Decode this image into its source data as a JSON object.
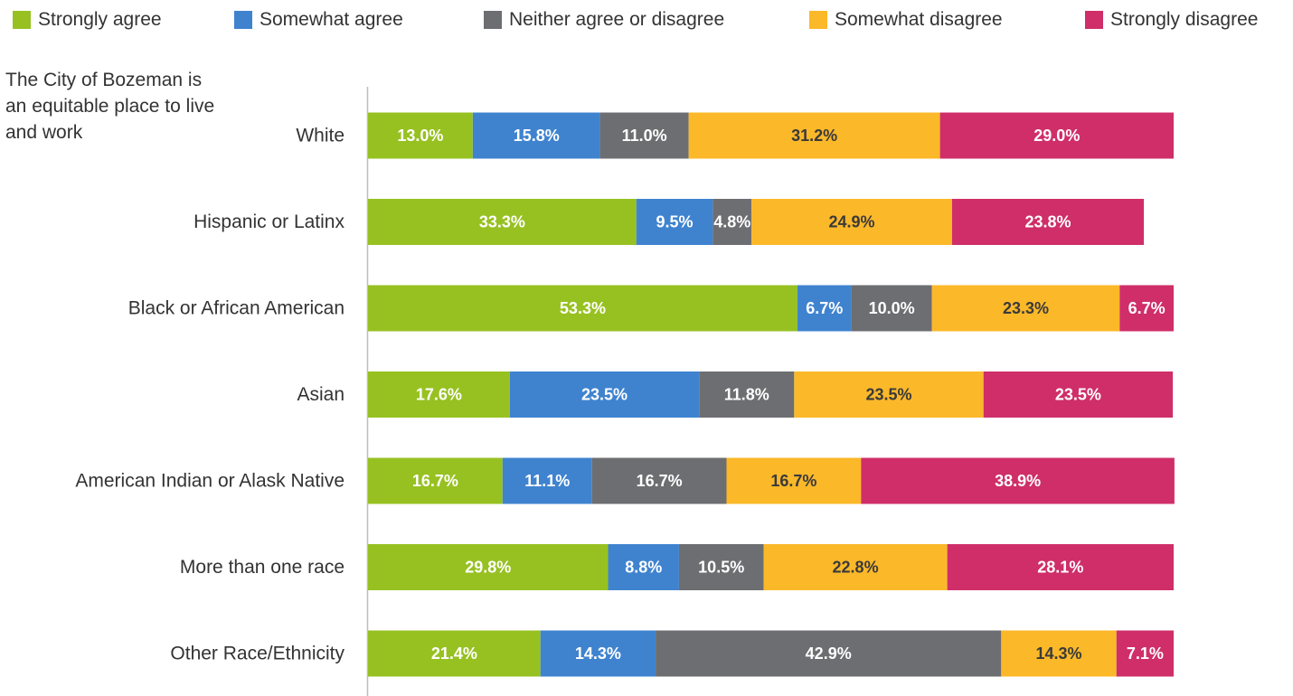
{
  "chart_data": {
    "type": "bar",
    "orientation": "horizontal",
    "stacked": true,
    "subtitle": "The City of Bozeman is an equitable place to live and work",
    "categories": [
      "White",
      "Hispanic or Latinx",
      "Black or African American",
      "Asian",
      "American Indian or Alask Native",
      "More than one race",
      "Other Race/Ethnicity"
    ],
    "series": [
      {
        "name": "Strongly agree",
        "color": "#97c121",
        "label_color": "#ffffff",
        "values": [
          13.0,
          33.3,
          53.3,
          17.6,
          16.7,
          29.8,
          21.4
        ],
        "labels": [
          "13.0%",
          "33.3%",
          "53.3%",
          "17.6%",
          "16.7%",
          "29.8%",
          "21.4%"
        ]
      },
      {
        "name": "Somewhat agree",
        "color": "#3f83cf",
        "label_color": "#ffffff",
        "values": [
          15.8,
          9.5,
          6.7,
          23.5,
          11.1,
          8.8,
          14.3
        ],
        "labels": [
          "15.8%",
          "9.5%",
          "6.7%",
          "23.5%",
          "11.1%",
          "8.8%",
          "14.3%"
        ]
      },
      {
        "name": "Neither agree or disagree",
        "color": "#6d6e71",
        "label_color": "#ffffff",
        "values": [
          11.0,
          4.8,
          10.0,
          11.8,
          16.7,
          10.5,
          42.9
        ],
        "labels": [
          "11.0%",
          "4.8%",
          "10.0%",
          "11.8%",
          "16.7%",
          "10.5%",
          "42.9%"
        ]
      },
      {
        "name": "Somewhat disagree",
        "color": "#fbb829",
        "label_color": "#3a3a3a",
        "values": [
          31.2,
          24.9,
          23.3,
          23.5,
          16.7,
          22.8,
          14.3
        ],
        "labels": [
          "31.2%",
          "24.9%",
          "23.3%",
          "23.5%",
          "16.7%",
          "22.8%",
          "14.3%"
        ]
      },
      {
        "name": "Strongly disagree",
        "color": "#cf2e69",
        "label_color": "#ffffff",
        "values": [
          29.0,
          23.8,
          6.7,
          23.5,
          38.9,
          28.1,
          7.1
        ],
        "labels": [
          "29.0%",
          "23.8%",
          "6.7%",
          "23.5%",
          "38.9%",
          "28.1%",
          "7.1%"
        ]
      }
    ],
    "xlim": [
      0,
      100
    ],
    "legend_position": "top",
    "grid": false
  }
}
